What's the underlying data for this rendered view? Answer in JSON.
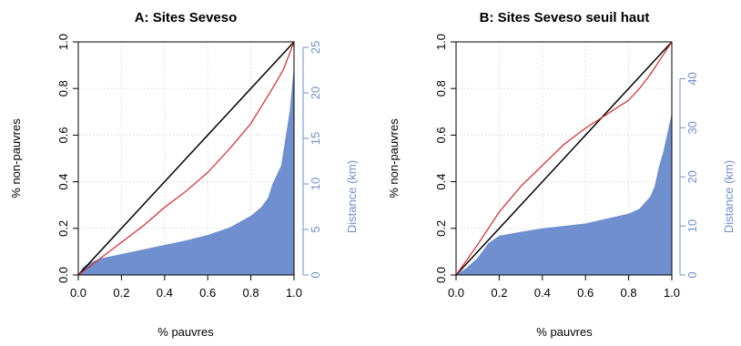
{
  "chart_data": [
    {
      "type": "line",
      "title": "A: Sites Seveso",
      "xlabel": "% pauvres",
      "ylabel": "% non-pauvres",
      "y2label": "Distance (km)",
      "xlim": [
        0,
        1
      ],
      "ylim": [
        0,
        1
      ],
      "y2lim": [
        0,
        25.6
      ],
      "xticks": [
        "0.0",
        "0.2",
        "0.4",
        "0.6",
        "0.8",
        "1.0"
      ],
      "yticks": [
        "0.0",
        "0.2",
        "0.4",
        "0.6",
        "0.8",
        "1.0"
      ],
      "y2ticks": [
        "0",
        "5",
        "10",
        "15",
        "20",
        "25"
      ],
      "y2tick_values": [
        0,
        5,
        10,
        15,
        20,
        25
      ],
      "grid": true,
      "colors": {
        "equality": "#000000",
        "curve": "#d62728",
        "area": "#6f8fcf"
      },
      "series": [
        {
          "kind": "line",
          "role": "equality",
          "x": [
            0,
            1
          ],
          "y": [
            0,
            1
          ]
        },
        {
          "kind": "line",
          "role": "curve",
          "x": [
            0,
            0.1,
            0.2,
            0.3,
            0.4,
            0.5,
            0.6,
            0.7,
            0.8,
            0.9,
            0.95,
            1.0
          ],
          "y": [
            0,
            0.07,
            0.14,
            0.21,
            0.29,
            0.36,
            0.44,
            0.54,
            0.65,
            0.8,
            0.88,
            1.0
          ]
        },
        {
          "kind": "area",
          "role": "area",
          "axis": "y2",
          "x": [
            0,
            0.02,
            0.05,
            0.1,
            0.2,
            0.3,
            0.4,
            0.5,
            0.6,
            0.7,
            0.8,
            0.85,
            0.88,
            0.9,
            0.92,
            0.94,
            0.96,
            0.98,
            0.99,
            1.0
          ],
          "y": [
            0,
            0.8,
            1.3,
            1.8,
            2.3,
            2.8,
            3.3,
            3.8,
            4.4,
            5.2,
            6.5,
            7.5,
            8.5,
            10,
            11,
            12,
            15,
            18,
            20.5,
            23
          ]
        }
      ]
    },
    {
      "type": "line",
      "title": "B: Sites Seveso seuil haut",
      "xlabel": "% pauvres",
      "ylabel": "% non-pauvres",
      "y2label": "Distance (km)",
      "xlim": [
        0,
        1
      ],
      "ylim": [
        0,
        1
      ],
      "y2lim": [
        0,
        47.5
      ],
      "xticks": [
        "0.0",
        "0.2",
        "0.4",
        "0.6",
        "0.8",
        "1.0"
      ],
      "yticks": [
        "0.0",
        "0.2",
        "0.4",
        "0.6",
        "0.8",
        "1.0"
      ],
      "y2ticks": [
        "0",
        "10",
        "20",
        "30",
        "40"
      ],
      "y2tick_values": [
        0,
        10,
        20,
        30,
        40
      ],
      "grid": true,
      "colors": {
        "equality": "#000000",
        "curve": "#d62728",
        "area": "#6f8fcf"
      },
      "series": [
        {
          "kind": "line",
          "role": "equality",
          "x": [
            0,
            1
          ],
          "y": [
            0,
            1
          ]
        },
        {
          "kind": "line",
          "role": "curve",
          "x": [
            0,
            0.1,
            0.2,
            0.3,
            0.4,
            0.5,
            0.6,
            0.7,
            0.8,
            0.85,
            0.9,
            0.95,
            1.0
          ],
          "y": [
            0,
            0.13,
            0.27,
            0.38,
            0.47,
            0.56,
            0.63,
            0.69,
            0.75,
            0.8,
            0.86,
            0.93,
            1.0
          ]
        },
        {
          "kind": "area",
          "role": "area",
          "axis": "y2",
          "x": [
            0,
            0.05,
            0.1,
            0.15,
            0.2,
            0.3,
            0.4,
            0.5,
            0.6,
            0.7,
            0.8,
            0.85,
            0.9,
            0.92,
            0.94,
            0.96,
            0.98,
            0.99,
            1.0
          ],
          "y": [
            0,
            1.5,
            3.5,
            6.5,
            8,
            8.8,
            9.5,
            10,
            10.5,
            11.5,
            12.5,
            13.5,
            16,
            18,
            22,
            25,
            29,
            31,
            33
          ]
        }
      ]
    }
  ]
}
